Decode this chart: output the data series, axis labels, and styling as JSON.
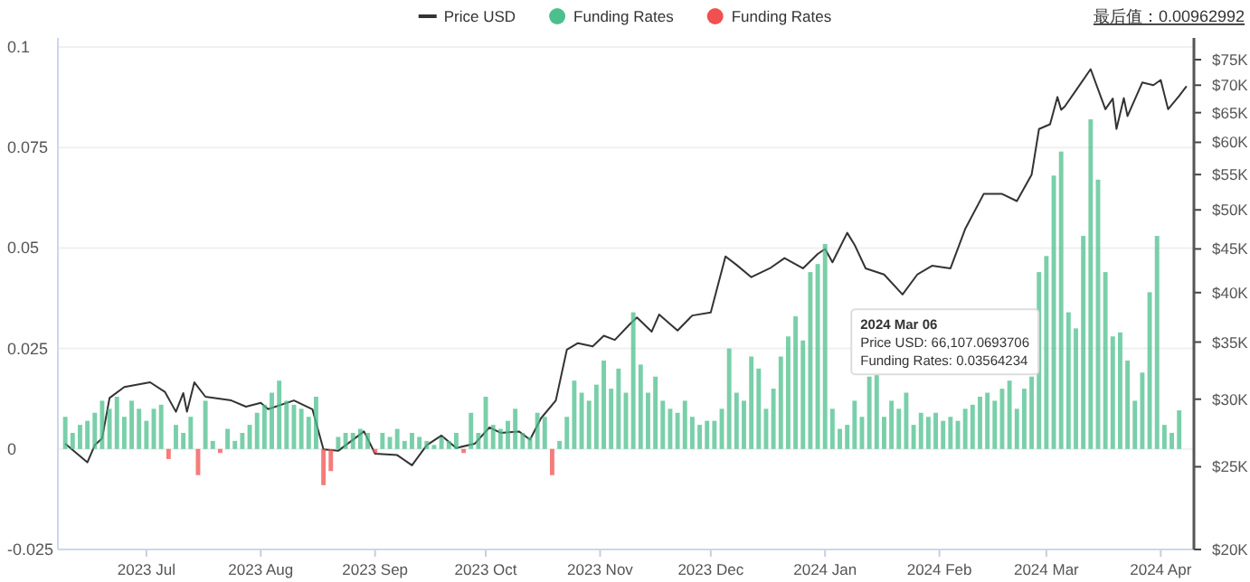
{
  "chart_data": {
    "type": "bar",
    "legend": "top",
    "grid": "y",
    "log": "y2",
    "x": [
      "2023-06-09",
      "2023-06-11",
      "2023-06-13",
      "2023-06-15",
      "2023-06-17",
      "2023-06-19",
      "2023-06-21",
      "2023-06-23",
      "2023-06-25",
      "2023-06-27",
      "2023-06-29",
      "2023-07-01",
      "2023-07-03",
      "2023-07-05",
      "2023-07-07",
      "2023-07-09",
      "2023-07-11",
      "2023-07-13",
      "2023-07-15",
      "2023-07-17",
      "2023-07-19",
      "2023-07-21",
      "2023-07-23",
      "2023-07-25",
      "2023-07-27",
      "2023-07-29",
      "2023-07-31",
      "2023-08-02",
      "2023-08-04",
      "2023-08-06",
      "2023-08-08",
      "2023-08-10",
      "2023-08-12",
      "2023-08-14",
      "2023-08-16",
      "2023-08-18",
      "2023-08-20",
      "2023-08-22",
      "2023-08-24",
      "2023-08-26",
      "2023-08-28",
      "2023-08-30",
      "2023-09-01",
      "2023-09-03",
      "2023-09-05",
      "2023-09-07",
      "2023-09-09",
      "2023-09-11",
      "2023-09-13",
      "2023-09-15",
      "2023-09-17",
      "2023-09-19",
      "2023-09-21",
      "2023-09-23",
      "2023-09-25",
      "2023-09-27",
      "2023-09-29",
      "2023-10-01",
      "2023-10-03",
      "2023-10-05",
      "2023-10-07",
      "2023-10-09",
      "2023-10-11",
      "2023-10-13",
      "2023-10-15",
      "2023-10-17",
      "2023-10-19",
      "2023-10-21",
      "2023-10-23",
      "2023-10-25",
      "2023-10-27",
      "2023-10-29",
      "2023-10-31",
      "2023-11-02",
      "2023-11-04",
      "2023-11-06",
      "2023-11-08",
      "2023-11-10",
      "2023-11-12",
      "2023-11-14",
      "2023-11-16",
      "2023-11-18",
      "2023-11-20",
      "2023-11-22",
      "2023-11-24",
      "2023-11-26",
      "2023-11-28",
      "2023-11-30",
      "2023-12-02",
      "2023-12-04",
      "2023-12-06",
      "2023-12-08",
      "2023-12-10",
      "2023-12-12",
      "2023-12-14",
      "2023-12-16",
      "2023-12-18",
      "2023-12-20",
      "2023-12-22",
      "2023-12-24",
      "2023-12-26",
      "2023-12-28",
      "2023-12-30",
      "2024-01-01",
      "2024-01-03",
      "2024-01-05",
      "2024-01-07",
      "2024-01-09",
      "2024-01-11",
      "2024-01-13",
      "2024-01-15",
      "2024-01-17",
      "2024-01-19",
      "2024-01-21",
      "2024-01-23",
      "2024-01-25",
      "2024-01-27",
      "2024-01-29",
      "2024-01-31",
      "2024-02-02",
      "2024-02-04",
      "2024-02-06",
      "2024-02-08",
      "2024-02-10",
      "2024-02-12",
      "2024-02-14",
      "2024-02-16",
      "2024-02-18",
      "2024-02-20",
      "2024-02-22",
      "2024-02-24",
      "2024-02-26",
      "2024-02-28",
      "2024-03-01",
      "2024-03-03",
      "2024-03-05",
      "2024-03-07",
      "2024-03-09",
      "2024-03-11",
      "2024-03-13",
      "2024-03-15",
      "2024-03-17",
      "2024-03-19",
      "2024-03-21",
      "2024-03-23",
      "2024-03-25",
      "2024-03-27",
      "2024-03-29",
      "2024-03-31",
      "2024-04-02",
      "2024-04-04",
      "2024-04-06"
    ],
    "series": [
      {
        "name": "Price USD",
        "type": "line",
        "axis": "y2",
        "color": "#333333",
        "x": [
          "2023-06-09",
          "2023-06-15",
          "2023-06-17",
          "2023-06-19",
          "2023-06-21",
          "2023-06-25",
          "2023-07-02",
          "2023-07-06",
          "2023-07-09",
          "2023-07-11",
          "2023-07-12",
          "2023-07-14",
          "2023-07-17",
          "2023-07-24",
          "2023-07-28",
          "2023-08-01",
          "2023-08-03",
          "2023-08-10",
          "2023-08-15",
          "2023-08-18",
          "2023-08-22",
          "2023-08-29",
          "2023-09-01",
          "2023-09-07",
          "2023-09-11",
          "2023-09-15",
          "2023-09-19",
          "2023-09-23",
          "2023-09-28",
          "2023-10-02",
          "2023-10-05",
          "2023-10-10",
          "2023-10-13",
          "2023-10-16",
          "2023-10-20",
          "2023-10-23",
          "2023-10-26",
          "2023-10-30",
          "2023-11-02",
          "2023-11-05",
          "2023-11-09",
          "2023-11-11",
          "2023-11-15",
          "2023-11-17",
          "2023-11-22",
          "2023-11-26",
          "2023-12-01",
          "2023-12-05",
          "2023-12-08",
          "2023-12-12",
          "2023-12-17",
          "2023-12-21",
          "2023-12-26",
          "2023-12-30",
          "2024-01-01",
          "2024-01-03",
          "2024-01-07",
          "2024-01-09",
          "2024-01-12",
          "2024-01-17",
          "2024-01-22",
          "2024-01-26",
          "2024-01-30",
          "2024-02-04",
          "2024-02-08",
          "2024-02-13",
          "2024-02-18",
          "2024-02-22",
          "2024-02-26",
          "2024-02-28",
          "2024-03-02",
          "2024-03-04",
          "2024-03-05",
          "2024-03-06",
          "2024-03-09",
          "2024-03-13",
          "2024-03-17",
          "2024-03-19",
          "2024-03-20",
          "2024-03-22",
          "2024-03-23",
          "2024-03-27",
          "2024-03-30",
          "2024-04-01",
          "2024-04-03",
          "2024-04-06",
          "2024-04-08"
        ],
        "values": [
          26600,
          25300,
          26500,
          27000,
          30100,
          31000,
          31400,
          30600,
          29000,
          30500,
          29000,
          31400,
          30200,
          29900,
          29400,
          29700,
          29200,
          29900,
          29200,
          26200,
          26100,
          27500,
          25900,
          25800,
          25100,
          26500,
          27200,
          26300,
          26600,
          27800,
          27400,
          27500,
          26900,
          28500,
          29900,
          34300,
          34900,
          34600,
          35600,
          35200,
          36700,
          37400,
          36000,
          37700,
          36100,
          37600,
          37900,
          44100,
          43100,
          41700,
          42700,
          43900,
          42700,
          44400,
          45000,
          43400,
          47000,
          45500,
          42700,
          42000,
          39800,
          42000,
          43000,
          42700,
          47500,
          52200,
          52200,
          51200,
          55000,
          62200,
          63000,
          67800,
          65500,
          66107,
          69000,
          73100,
          65600,
          67500,
          62200,
          67600,
          64400,
          70500,
          70000,
          71000,
          65600,
          68000,
          69800
        ]
      },
      {
        "name": "Funding Rates",
        "color": "#4cbf8c",
        "values": [
          0.008,
          0.004,
          0.006,
          0.007,
          0.009,
          0.012,
          0.01,
          0.013,
          0.008,
          0.012,
          0.01,
          0.007,
          0.01,
          0.011,
          null,
          0.006,
          0.004,
          0.008,
          null,
          0.012,
          0.002,
          null,
          0.005,
          0.002,
          0.004,
          0.006,
          0.009,
          0.011,
          0.014,
          0.017,
          0.012,
          0.011,
          0.01,
          0.008,
          0.013,
          null,
          null,
          0.003,
          0.004,
          0.004,
          0.005,
          0.004,
          null,
          0.004,
          0.003,
          0.005,
          0.002,
          0.004,
          0.003,
          0.002,
          0.001,
          0.003,
          0.002,
          0.004,
          null,
          0.009,
          0.004,
          0.013,
          0.006,
          0.005,
          0.007,
          0.01,
          0.004,
          0.003,
          0.009,
          0.008,
          null,
          0.002,
          0.008,
          0.017,
          0.014,
          0.012,
          0.016,
          0.022,
          0.015,
          0.02,
          0.014,
          0.034,
          0.021,
          0.014,
          0.018,
          0.012,
          0.01,
          0.009,
          0.012,
          0.008,
          0.006,
          0.007,
          0.007,
          0.01,
          0.025,
          0.014,
          0.012,
          0.023,
          0.02,
          0.01,
          0.015,
          0.023,
          0.028,
          0.033,
          0.027,
          0.044,
          0.046,
          0.051,
          0.01,
          0.005,
          0.006,
          0.012,
          0.008,
          0.018,
          0.019,
          0.008,
          0.012,
          0.01,
          0.014,
          0.006,
          0.009,
          0.008,
          0.009,
          0.007,
          0.008,
          0.007,
          0.01,
          0.011,
          0.013,
          0.014,
          0.012,
          0.015,
          0.017,
          0.01,
          0.015,
          0.018,
          0.044,
          0.048,
          0.068,
          0.074,
          0.034,
          0.03,
          0.053,
          0.082,
          0.067,
          0.044,
          0.028,
          0.029,
          0.022,
          0.012,
          0.019,
          0.039,
          0.053,
          0.006,
          0.004,
          0.0096
        ]
      },
      {
        "name": "Funding Rates",
        "color": "#f0504f",
        "values": [
          null,
          null,
          null,
          null,
          null,
          null,
          null,
          null,
          null,
          null,
          null,
          null,
          null,
          null,
          -0.0025,
          null,
          null,
          null,
          -0.0065,
          null,
          null,
          -0.001,
          null,
          null,
          null,
          null,
          null,
          null,
          null,
          null,
          null,
          null,
          null,
          null,
          null,
          -0.009,
          -0.0055,
          null,
          null,
          null,
          null,
          null,
          -0.001,
          null,
          null,
          null,
          null,
          null,
          null,
          null,
          null,
          null,
          null,
          null,
          -0.001,
          null,
          null,
          null,
          null,
          null,
          null,
          null,
          null,
          null,
          null,
          null,
          -0.0065,
          null,
          null,
          null,
          null,
          null,
          null,
          null,
          null,
          null,
          null,
          null,
          null,
          null,
          null,
          null,
          null,
          null,
          null,
          null,
          null,
          null,
          null,
          null,
          null,
          null,
          null,
          null,
          null,
          null,
          null,
          null,
          null,
          null,
          null,
          null,
          null,
          null,
          null,
          null,
          null,
          null,
          null,
          null,
          null,
          null,
          null,
          null,
          null,
          null,
          null,
          null,
          null,
          null,
          null,
          null,
          null,
          null,
          null,
          null,
          null,
          null,
          null,
          null,
          null,
          null,
          null,
          null,
          null,
          null,
          null,
          null,
          null,
          null,
          null,
          null,
          null,
          null,
          null,
          null,
          null,
          null,
          null,
          null,
          null,
          null
        ]
      }
    ],
    "xlim": [
      "2023-06-07",
      "2024-04-10"
    ],
    "xticks": [
      {
        "value": "2023-07-01",
        "label": "2023 Jul"
      },
      {
        "value": "2023-08-01",
        "label": "2023 Aug"
      },
      {
        "value": "2023-09-01",
        "label": "2023 Sep"
      },
      {
        "value": "2023-10-01",
        "label": "2023 Oct"
      },
      {
        "value": "2023-11-01",
        "label": "2023 Nov"
      },
      {
        "value": "2023-12-01",
        "label": "2023 Dec"
      },
      {
        "value": "2024-01-01",
        "label": "2024 Jan"
      },
      {
        "value": "2024-02-01",
        "label": "2024 Feb"
      },
      {
        "value": "2024-03-01",
        "label": "2024 Mar"
      },
      {
        "value": "2024-04-01",
        "label": "2024 Apr"
      }
    ],
    "ylim": [
      -0.025,
      0.1
    ],
    "yticks": [
      -0.025,
      0,
      0.025,
      0.05,
      0.075,
      0.1
    ],
    "y2lim": [
      20000,
      77600
    ],
    "y2ticks": [
      {
        "value": 20000,
        "label": "$20K"
      },
      {
        "value": 25000,
        "label": "$25K"
      },
      {
        "value": 30000,
        "label": "$30K"
      },
      {
        "value": 35000,
        "label": "$35K"
      },
      {
        "value": 40000,
        "label": "$40K"
      },
      {
        "value": 45000,
        "label": "$45K"
      },
      {
        "value": 50000,
        "label": "$50K"
      },
      {
        "value": 55000,
        "label": "$55K"
      },
      {
        "value": 60000,
        "label": "$60K"
      },
      {
        "value": 65000,
        "label": "$65K"
      },
      {
        "value": 70000,
        "label": "$70K"
      },
      {
        "value": 75000,
        "label": "$75K"
      }
    ],
    "annotations": [
      "最后值：0.00962992",
      {
        "text": "2024 Mar 06\nPrice USD: 66,107.0693706\nFunding Rates: 0.03564234",
        "x": "2024-03-06",
        "y": 0.03564234
      }
    ]
  }
}
